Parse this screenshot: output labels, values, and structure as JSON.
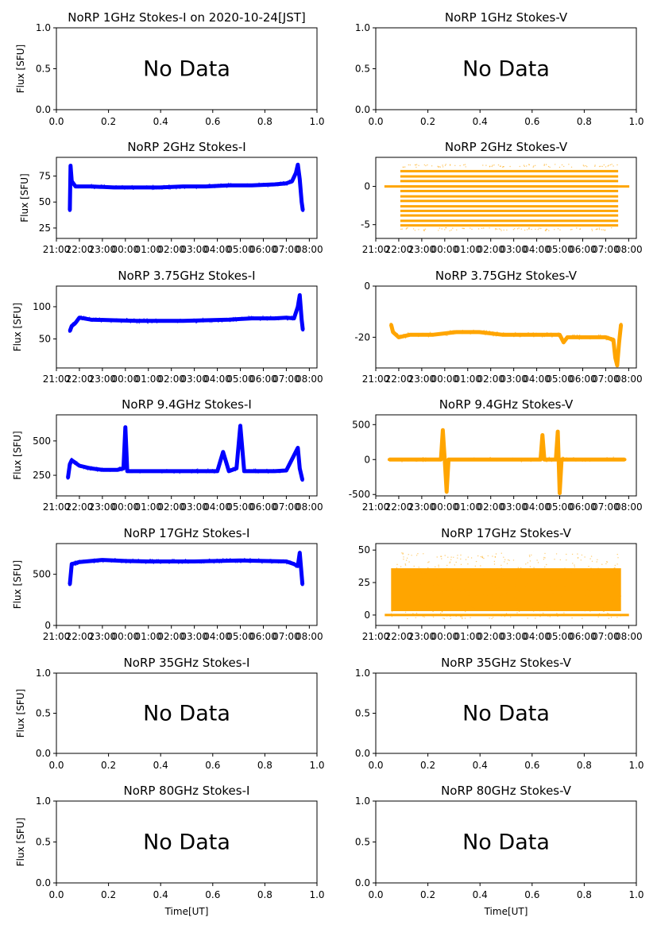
{
  "figure": {
    "xlabel": "Time[UT]",
    "no_data_text": "No Data",
    "colors": {
      "stokes_i": "#0000ff",
      "stokes_v": "#ffa500"
    }
  },
  "chart_data": [
    {
      "id": "1ghz-i",
      "type": "scatter",
      "title": "NoRP 1GHz Stokes-I on 2020-10-24[JST]",
      "ylabel": "Flux [SFU]",
      "no_data": true,
      "xlim": [
        0,
        1
      ],
      "ylim": [
        0,
        1
      ],
      "xticks": [
        "0.0",
        "0.2",
        "0.4",
        "0.6",
        "0.8",
        "1.0"
      ],
      "yticks": [
        "0.0",
        "0.5",
        "1.0"
      ]
    },
    {
      "id": "1ghz-v",
      "type": "scatter",
      "title": "NoRP 1GHz Stokes-V",
      "ylabel": "",
      "no_data": true,
      "xlim": [
        0,
        1
      ],
      "ylim": [
        0,
        1
      ],
      "xticks": [
        "0.0",
        "0.2",
        "0.4",
        "0.6",
        "0.8",
        "1.0"
      ],
      "yticks": [
        "0.0",
        "0.5",
        "1.0"
      ]
    },
    {
      "id": "2ghz-i",
      "type": "scatter",
      "title": "NoRP 2GHz Stokes-I",
      "ylabel": "Flux [SFU]",
      "color": "#0000ff",
      "xlim": [
        "21:00",
        "08:20"
      ],
      "ylim": [
        15,
        93
      ],
      "xticks": [
        "21:00",
        "22:00",
        "23:00",
        "00:00",
        "01:00",
        "02:00",
        "03:00",
        "04:00",
        "05:00",
        "06:00",
        "07:00",
        "08:00"
      ],
      "yticks": [
        25,
        50,
        75
      ],
      "series": [
        {
          "name": "Stokes-I",
          "x": [
            "21:35",
            "21:37",
            "21:40",
            "21:50",
            "22:30",
            "23:30",
            "00:30",
            "01:30",
            "02:30",
            "03:30",
            "04:30",
            "05:30",
            "06:30",
            "07:00",
            "07:15",
            "07:25",
            "07:30",
            "07:35",
            "07:40",
            "07:43"
          ],
          "y": [
            42,
            85,
            70,
            65,
            65,
            64,
            64,
            64,
            65,
            65,
            66,
            66,
            67,
            68,
            70,
            78,
            86,
            72,
            50,
            42
          ]
        }
      ]
    },
    {
      "id": "2ghz-v",
      "type": "scatter",
      "title": "NoRP 2GHz Stokes-V",
      "ylabel": "",
      "color": "#ffa500",
      "xlim": [
        "21:00",
        "08:20"
      ],
      "ylim": [
        -6.8,
        3.8
      ],
      "xticks": [
        "21:00",
        "22:00",
        "23:00",
        "00:00",
        "01:00",
        "02:00",
        "03:00",
        "04:00",
        "05:00",
        "06:00",
        "07:00",
        "08:00"
      ],
      "yticks": [
        -5,
        0
      ],
      "series": [
        {
          "name": "Stokes-V",
          "x_range": [
            "21:35",
            "07:45"
          ],
          "levels": [
            2.0,
            1.3,
            0.7,
            0.0,
            -0.6,
            -1.3,
            -1.9,
            -2.6,
            -3.2,
            -3.8,
            -4.5,
            -5.1
          ],
          "outliers": [
            2.7,
            -5.6
          ]
        }
      ]
    },
    {
      "id": "375ghz-i",
      "type": "scatter",
      "title": "NoRP 3.75GHz Stokes-I",
      "ylabel": "Flux [SFU]",
      "color": "#0000ff",
      "xlim": [
        "21:00",
        "08:20"
      ],
      "ylim": [
        5,
        132
      ],
      "xticks": [
        "21:00",
        "22:00",
        "23:00",
        "00:00",
        "01:00",
        "02:00",
        "03:00",
        "04:00",
        "05:00",
        "06:00",
        "07:00",
        "08:00"
      ],
      "yticks": [
        50,
        100
      ],
      "series": [
        {
          "name": "Stokes-I",
          "x": [
            "21:35",
            "21:40",
            "21:50",
            "22:00",
            "22:30",
            "23:30",
            "00:30",
            "01:30",
            "02:30",
            "03:30",
            "04:30",
            "05:00",
            "05:30",
            "06:30",
            "07:00",
            "07:20",
            "07:30",
            "07:35",
            "07:40",
            "07:43"
          ],
          "y": [
            62,
            70,
            75,
            83,
            80,
            79,
            78,
            78,
            78,
            79,
            80,
            81,
            82,
            82,
            83,
            82,
            100,
            118,
            80,
            64
          ]
        }
      ]
    },
    {
      "id": "375ghz-v",
      "type": "scatter",
      "title": "NoRP 3.75GHz Stokes-V",
      "ylabel": "",
      "color": "#ffa500",
      "xlim": [
        "21:00",
        "08:20"
      ],
      "ylim": [
        -32,
        0
      ],
      "xticks": [
        "21:00",
        "22:00",
        "23:00",
        "00:00",
        "01:00",
        "02:00",
        "03:00",
        "04:00",
        "05:00",
        "06:00",
        "07:00",
        "08:00"
      ],
      "yticks": [
        -20,
        0
      ],
      "series": [
        {
          "name": "Stokes-V",
          "x": [
            "21:40",
            "21:45",
            "22:00",
            "22:30",
            "23:30",
            "00:30",
            "01:30",
            "02:30",
            "03:30",
            "04:30",
            "05:00",
            "05:10",
            "05:20",
            "06:00",
            "07:00",
            "07:20",
            "07:25",
            "07:30",
            "07:35",
            "07:40"
          ],
          "y": [
            -15,
            -18,
            -20,
            -19,
            -19,
            -18,
            -18,
            -19,
            -19,
            -19,
            -19,
            -22,
            -20,
            -20,
            -20,
            -21,
            -28,
            -31,
            -22,
            -15
          ]
        }
      ]
    },
    {
      "id": "94ghz-i",
      "type": "scatter",
      "title": "NoRP 9.4GHz Stokes-I",
      "ylabel": "Flux [SFU]",
      "color": "#0000ff",
      "xlim": [
        "21:00",
        "08:20"
      ],
      "ylim": [
        100,
        690
      ],
      "xticks": [
        "21:00",
        "22:00",
        "23:00",
        "00:00",
        "01:00",
        "02:00",
        "03:00",
        "04:00",
        "05:00",
        "06:00",
        "07:00",
        "08:00"
      ],
      "yticks": [
        250,
        500
      ],
      "series": [
        {
          "name": "Stokes-I",
          "x": [
            "21:30",
            "21:35",
            "21:40",
            "22:00",
            "22:30",
            "23:00",
            "23:40",
            "23:55",
            "00:00",
            "00:05",
            "00:30",
            "01:30",
            "02:30",
            "03:30",
            "04:00",
            "04:15",
            "04:30",
            "04:50",
            "05:00",
            "05:10",
            "05:30",
            "06:30",
            "07:00",
            "07:30",
            "07:35",
            "07:42"
          ],
          "y": [
            230,
            330,
            360,
            320,
            300,
            290,
            290,
            300,
            600,
            280,
            280,
            280,
            280,
            280,
            280,
            420,
            280,
            300,
            610,
            280,
            280,
            280,
            285,
            450,
            300,
            215
          ]
        }
      ]
    },
    {
      "id": "94ghz-v",
      "type": "scatter",
      "title": "NoRP 9.4GHz Stokes-V",
      "ylabel": "",
      "color": "#ffa500",
      "xlim": [
        "21:00",
        "08:20"
      ],
      "ylim": [
        -520,
        640
      ],
      "xticks": [
        "21:00",
        "22:00",
        "23:00",
        "00:00",
        "01:00",
        "02:00",
        "03:00",
        "04:00",
        "05:00",
        "06:00",
        "07:00",
        "08:00"
      ],
      "yticks": [
        -500,
        0,
        500
      ],
      "series": [
        {
          "name": "Stokes-V",
          "x": [
            "21:35",
            "23:50",
            "23:55",
            "00:00",
            "00:05",
            "00:10",
            "04:10",
            "04:15",
            "04:20",
            "04:50",
            "04:55",
            "05:00",
            "05:05",
            "05:10",
            "07:50"
          ],
          "y": [
            0,
            0,
            420,
            0,
            -460,
            0,
            0,
            350,
            0,
            0,
            400,
            -480,
            0,
            0,
            0
          ]
        }
      ]
    },
    {
      "id": "17ghz-i",
      "type": "scatter",
      "title": "NoRP 17GHz Stokes-I",
      "ylabel": "Flux [SFU]",
      "color": "#0000ff",
      "xlim": [
        "21:00",
        "08:20"
      ],
      "ylim": [
        0,
        800
      ],
      "xticks": [
        "21:00",
        "22:00",
        "23:00",
        "00:00",
        "01:00",
        "02:00",
        "03:00",
        "04:00",
        "05:00",
        "06:00",
        "07:00",
        "08:00"
      ],
      "yticks": [
        0,
        500
      ],
      "series": [
        {
          "name": "Stokes-I",
          "x": [
            "21:35",
            "21:40",
            "22:00",
            "23:00",
            "00:00",
            "01:00",
            "02:00",
            "03:00",
            "04:00",
            "05:00",
            "06:00",
            "07:00",
            "07:20",
            "07:30",
            "07:35",
            "07:42"
          ],
          "y": [
            400,
            600,
            620,
            640,
            630,
            625,
            625,
            625,
            630,
            635,
            630,
            625,
            600,
            580,
            710,
            400
          ]
        }
      ]
    },
    {
      "id": "17ghz-v",
      "type": "scatter",
      "title": "NoRP 17GHz Stokes-V",
      "ylabel": "",
      "color": "#ffa500",
      "xlim": [
        "21:00",
        "08:20"
      ],
      "ylim": [
        -8,
        55
      ],
      "xticks": [
        "21:00",
        "22:00",
        "23:00",
        "00:00",
        "01:00",
        "02:00",
        "03:00",
        "04:00",
        "05:00",
        "06:00",
        "07:00",
        "08:00"
      ],
      "yticks": [
        0,
        25,
        50
      ],
      "series": [
        {
          "name": "Stokes-V",
          "x_range": [
            "21:40",
            "07:40"
          ],
          "band": [
            -3,
            48
          ],
          "baseline": 0
        }
      ]
    },
    {
      "id": "35ghz-i",
      "type": "scatter",
      "title": "NoRP 35GHz Stokes-I",
      "ylabel": "Flux [SFU]",
      "no_data": true,
      "xlim": [
        0,
        1
      ],
      "ylim": [
        0,
        1
      ],
      "xticks": [
        "0.0",
        "0.2",
        "0.4",
        "0.6",
        "0.8",
        "1.0"
      ],
      "yticks": [
        "0.0",
        "0.5",
        "1.0"
      ]
    },
    {
      "id": "35ghz-v",
      "type": "scatter",
      "title": "NoRP 35GHz Stokes-V",
      "ylabel": "",
      "no_data": true,
      "xlim": [
        0,
        1
      ],
      "ylim": [
        0,
        1
      ],
      "xticks": [
        "0.0",
        "0.2",
        "0.4",
        "0.6",
        "0.8",
        "1.0"
      ],
      "yticks": [
        "0.0",
        "0.5",
        "1.0"
      ]
    },
    {
      "id": "80ghz-i",
      "type": "scatter",
      "title": "NoRP 80GHz Stokes-I",
      "ylabel": "Flux [SFU]",
      "xlabel": "Time[UT]",
      "no_data": true,
      "xlim": [
        0,
        1
      ],
      "ylim": [
        0,
        1
      ],
      "xticks": [
        "0.0",
        "0.2",
        "0.4",
        "0.6",
        "0.8",
        "1.0"
      ],
      "yticks": [
        "0.0",
        "0.5",
        "1.0"
      ]
    },
    {
      "id": "80ghz-v",
      "type": "scatter",
      "title": "NoRP 80GHz Stokes-V",
      "ylabel": "",
      "xlabel": "Time[UT]",
      "no_data": true,
      "xlim": [
        0,
        1
      ],
      "ylim": [
        0,
        1
      ],
      "xticks": [
        "0.0",
        "0.2",
        "0.4",
        "0.6",
        "0.8",
        "1.0"
      ],
      "yticks": [
        "0.0",
        "0.5",
        "1.0"
      ]
    }
  ]
}
